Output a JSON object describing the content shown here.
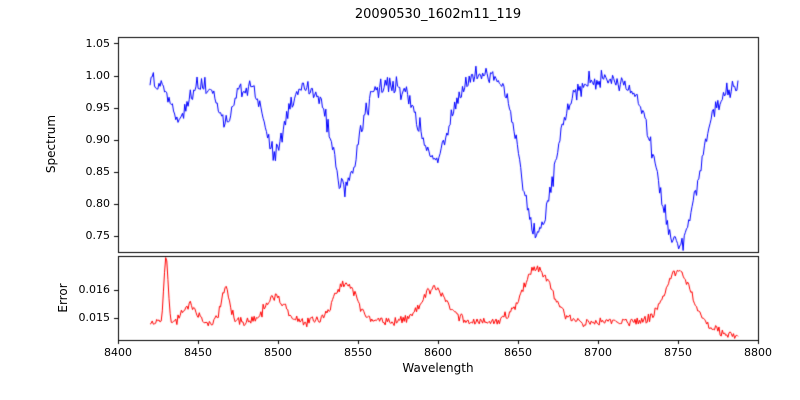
{
  "figure": {
    "background": "#ffffff",
    "axis_color": "#000000"
  },
  "chart_data": [
    {
      "type": "line",
      "panel": "spectrum",
      "title": "20090530_1602m11_119",
      "xlabel": "Wavelength",
      "ylabel": "Spectrum",
      "color": "#0000ff",
      "grid": false,
      "legend": null,
      "xlim": [
        8400,
        8800
      ],
      "ylim": [
        0.725,
        1.06
      ],
      "x_range": [
        8420,
        8788
      ],
      "x_tick_labels": [
        "8400",
        "8450",
        "8500",
        "8550",
        "8600",
        "8650",
        "8700",
        "8750",
        "8800"
      ],
      "y_tick_labels": [
        "1.05",
        "1.00",
        "0.95",
        "0.90",
        "0.85",
        "0.80",
        "0.75"
      ],
      "model": {
        "seed": 20090530,
        "sample_step": 0.7,
        "continuum": 0.985,
        "noise_amplitude": 0.011,
        "absorption_lines": [
          {
            "center": 8438,
            "depth": 0.05,
            "width": 5
          },
          {
            "center": 8467,
            "depth": 0.055,
            "width": 4.5
          },
          {
            "center": 8498,
            "depth": 0.105,
            "width": 6
          },
          {
            "center": 8542,
            "depth": 0.16,
            "width": 8
          },
          {
            "center": 8598,
            "depth": 0.12,
            "width": 9
          },
          {
            "center": 8662,
            "depth": 0.235,
            "width": 10
          },
          {
            "center": 8750,
            "depth": 0.25,
            "width": 12
          }
        ],
        "continuum_bumps": [
          {
            "center": 8630,
            "height": 0.018,
            "width": 18
          },
          {
            "center": 8705,
            "height": 0.008,
            "width": 12
          }
        ]
      }
    },
    {
      "type": "line",
      "panel": "error",
      "title": "",
      "xlabel": "Wavelength",
      "ylabel": "Error",
      "color": "#ff0000",
      "grid": false,
      "legend": null,
      "xlim": [
        8400,
        8800
      ],
      "ylim": [
        0.0142,
        0.0172
      ],
      "x_range": [
        8420,
        8788
      ],
      "x_tick_labels": [
        "8400",
        "8450",
        "8500",
        "8550",
        "8600",
        "8650",
        "8700",
        "8750",
        "8800"
      ],
      "y_tick_labels": [
        "0.016",
        "0.015"
      ],
      "model": {
        "seed": 1602119,
        "sample_step": 0.7,
        "baseline": 0.01485,
        "noise_amplitude": 0.00013,
        "peaks": [
          {
            "center": 8430,
            "height": 0.0024,
            "width": 1.2
          },
          {
            "center": 8445,
            "height": 0.0006,
            "width": 4
          },
          {
            "center": 8467,
            "height": 0.0013,
            "width": 2.5
          },
          {
            "center": 8498,
            "height": 0.0009,
            "width": 6
          },
          {
            "center": 8542,
            "height": 0.0014,
            "width": 7
          },
          {
            "center": 8598,
            "height": 0.0012,
            "width": 8
          },
          {
            "center": 8662,
            "height": 0.0019,
            "width": 9
          },
          {
            "center": 8750,
            "height": 0.0018,
            "width": 8
          }
        ],
        "right_edge_fade": {
          "start": 8758,
          "slope_per_angstrom": 1.8e-05
        }
      }
    }
  ]
}
